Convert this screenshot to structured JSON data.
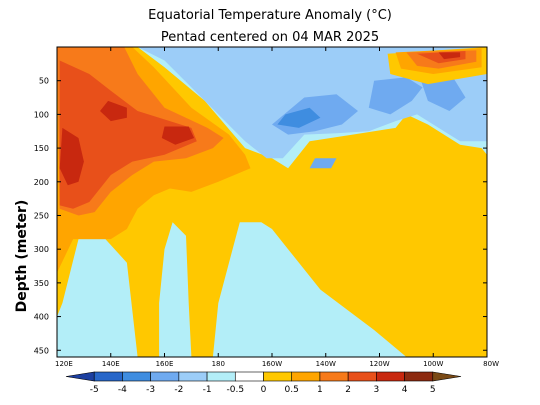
{
  "chart_data": {
    "type": "heatmap",
    "title": "Equatorial Temperature Anomaly (°C)",
    "subtitle": "Pentad centered on 04 MAR 2025",
    "ylabel": "Depth (meter)",
    "xlabel": "",
    "x_ticks": [
      "120E",
      "140E",
      "160E",
      "180",
      "160W",
      "140W",
      "120W",
      "100W",
      "80W"
    ],
    "x_tick_values": [
      120,
      140,
      160,
      180,
      200,
      220,
      240,
      260,
      280
    ],
    "xlim": [
      120,
      280
    ],
    "y_ticks": [
      "50",
      "100",
      "150",
      "200",
      "250",
      "300",
      "350",
      "400",
      "450"
    ],
    "y_tick_values": [
      50,
      100,
      150,
      200,
      250,
      300,
      350,
      400,
      450
    ],
    "ylim": [
      0,
      460
    ],
    "y_inverted": true,
    "colorbar": {
      "labels": [
        "-5",
        "-4",
        "-3",
        "-2",
        "-1",
        "-0.5",
        "0",
        "0.5",
        "1",
        "2",
        "3",
        "4",
        "5"
      ],
      "levels": [
        -5,
        -4,
        -3,
        -2,
        -1,
        -0.5,
        0,
        0.5,
        1,
        2,
        3,
        4,
        5
      ],
      "colors": [
        "#1c3fa0",
        "#2766c9",
        "#3f8de0",
        "#6faaf0",
        "#9ccdf8",
        "#b3eef8",
        "#ffffff",
        "#ffc800",
        "#ffa500",
        "#f77a1a",
        "#e8501a",
        "#c8280f",
        "#8c2a10",
        "#7a4a16"
      ]
    },
    "regions": [
      {
        "level": -0.5,
        "color": "#b3eef8",
        "polygon": [
          [
            120,
            0
          ],
          [
            280,
            0
          ],
          [
            280,
            460
          ],
          [
            120,
            460
          ]
        ]
      },
      {
        "level": 0.5,
        "color": "#ffc800",
        "polygon": [
          [
            122,
            0
          ],
          [
            150,
            0
          ],
          [
            160,
            30
          ],
          [
            175,
            80
          ],
          [
            190,
            150
          ],
          [
            200,
            165
          ],
          [
            206,
            180
          ],
          [
            214,
            140
          ],
          [
            230,
            130
          ],
          [
            246,
            120
          ],
          [
            250,
            100
          ],
          [
            258,
            115
          ],
          [
            264,
            130
          ],
          [
            270,
            145
          ],
          [
            278,
            150
          ],
          [
            280,
            160
          ],
          [
            280,
            460
          ],
          [
            250,
            460
          ],
          [
            238,
            420
          ],
          [
            218,
            360
          ],
          [
            206,
            300
          ],
          [
            200,
            270
          ],
          [
            196,
            260
          ],
          [
            188,
            260
          ],
          [
            184,
            320
          ],
          [
            180,
            380
          ],
          [
            178,
            460
          ],
          [
            170,
            460
          ],
          [
            169,
            380
          ],
          [
            168,
            280
          ],
          [
            163,
            260
          ],
          [
            160,
            300
          ],
          [
            158,
            380
          ],
          [
            158,
            460
          ],
          [
            150,
            460
          ],
          [
            146,
            320
          ],
          [
            138,
            285
          ],
          [
            128,
            285
          ],
          [
            122,
            380
          ],
          [
            120,
            400
          ],
          [
            120,
            0
          ]
        ]
      },
      {
        "level": 1,
        "color": "#ffa500",
        "polygon": [
          [
            120,
            0
          ],
          [
            148,
            0
          ],
          [
            156,
            30
          ],
          [
            170,
            90
          ],
          [
            184,
            130
          ],
          [
            190,
            160
          ],
          [
            192,
            180
          ],
          [
            180,
            200
          ],
          [
            170,
            215
          ],
          [
            162,
            210
          ],
          [
            156,
            220
          ],
          [
            150,
            240
          ],
          [
            146,
            270
          ],
          [
            140,
            285
          ],
          [
            126,
            285
          ],
          [
            120,
            335
          ]
        ]
      },
      {
        "level": 2,
        "color": "#f77a1a",
        "polygon": [
          [
            120,
            0
          ],
          [
            145,
            0
          ],
          [
            150,
            40
          ],
          [
            160,
            90
          ],
          [
            176,
            120
          ],
          [
            182,
            135
          ],
          [
            178,
            150
          ],
          [
            168,
            165
          ],
          [
            156,
            170
          ],
          [
            148,
            190
          ],
          [
            140,
            215
          ],
          [
            134,
            245
          ],
          [
            128,
            250
          ],
          [
            121,
            240
          ]
        ]
      },
      {
        "level": 3,
        "color": "#e8501a",
        "polygon": [
          [
            121,
            20
          ],
          [
            132,
            40
          ],
          [
            140,
            65
          ],
          [
            150,
            95
          ],
          [
            162,
            110
          ],
          [
            170,
            120
          ],
          [
            172,
            140
          ],
          [
            160,
            160
          ],
          [
            148,
            170
          ],
          [
            140,
            190
          ],
          [
            132,
            230
          ],
          [
            126,
            240
          ],
          [
            121,
            235
          ]
        ]
      },
      {
        "level": 4,
        "color": "#c8280f",
        "polygon": [
          [
            122,
            120
          ],
          [
            128,
            135
          ],
          [
            130,
            170
          ],
          [
            128,
            200
          ],
          [
            124,
            205
          ],
          [
            121,
            180
          ]
        ]
      },
      {
        "level": 4,
        "color": "#c8280f",
        "polygon": [
          [
            139,
            80
          ],
          [
            146,
            90
          ],
          [
            146,
            105
          ],
          [
            140,
            110
          ],
          [
            136,
            95
          ]
        ]
      },
      {
        "level": 4,
        "color": "#c8280f",
        "polygon": [
          [
            160,
            118
          ],
          [
            169,
            118
          ],
          [
            171,
            135
          ],
          [
            164,
            145
          ],
          [
            159,
            135
          ]
        ]
      },
      {
        "level": -1,
        "color": "#9ccdf8",
        "polygon": [
          [
            150,
            0
          ],
          [
            280,
            0
          ],
          [
            280,
            140
          ],
          [
            270,
            140
          ],
          [
            262,
            120
          ],
          [
            254,
            100
          ],
          [
            246,
            110
          ],
          [
            236,
            125
          ],
          [
            224,
            128
          ],
          [
            212,
            130
          ],
          [
            204,
            165
          ],
          [
            198,
            165
          ],
          [
            190,
            140
          ],
          [
            180,
            100
          ],
          [
            170,
            60
          ],
          [
            160,
            20
          ]
        ]
      },
      {
        "level": -2,
        "color": "#6faaf0",
        "polygon": [
          [
            212,
            75
          ],
          [
            224,
            70
          ],
          [
            232,
            95
          ],
          [
            226,
            115
          ],
          [
            216,
            125
          ],
          [
            206,
            130
          ],
          [
            200,
            115
          ]
        ]
      },
      {
        "level": -2,
        "color": "#6faaf0",
        "polygon": [
          [
            238,
            50
          ],
          [
            250,
            45
          ],
          [
            256,
            60
          ],
          [
            252,
            80
          ],
          [
            244,
            100
          ],
          [
            236,
            90
          ]
        ]
      },
      {
        "level": -2,
        "color": "#6faaf0",
        "polygon": [
          [
            255,
            45
          ],
          [
            265,
            30
          ],
          [
            272,
            75
          ],
          [
            266,
            95
          ],
          [
            258,
            80
          ]
        ]
      },
      {
        "level": -2,
        "color": "#6faaf0",
        "polygon": [
          [
            216,
            165
          ],
          [
            224,
            165
          ],
          [
            222,
            180
          ],
          [
            214,
            180
          ]
        ]
      },
      {
        "level": -3,
        "color": "#3f8de0",
        "polygon": [
          [
            205,
            100
          ],
          [
            214,
            90
          ],
          [
            218,
            105
          ],
          [
            210,
            120
          ],
          [
            202,
            115
          ]
        ]
      },
      {
        "level": 0.5,
        "color": "#ffc800",
        "polygon": [
          [
            243,
            10
          ],
          [
            280,
            0
          ],
          [
            280,
            40
          ],
          [
            258,
            55
          ],
          [
            244,
            40
          ]
        ]
      },
      {
        "level": 1,
        "color": "#ffa500",
        "polygon": [
          [
            246,
            8
          ],
          [
            278,
            2
          ],
          [
            278,
            30
          ],
          [
            260,
            40
          ],
          [
            248,
            32
          ]
        ]
      },
      {
        "level": 2,
        "color": "#f77a1a",
        "polygon": [
          [
            250,
            8
          ],
          [
            276,
            5
          ],
          [
            276,
            22
          ],
          [
            262,
            32
          ],
          [
            254,
            28
          ]
        ]
      },
      {
        "level": 3,
        "color": "#e8501a",
        "polygon": [
          [
            254,
            10
          ],
          [
            272,
            6
          ],
          [
            272,
            18
          ],
          [
            262,
            24
          ]
        ]
      },
      {
        "level": 4,
        "color": "#c8280f",
        "polygon": [
          [
            262,
            8
          ],
          [
            270,
            8
          ],
          [
            270,
            15
          ],
          [
            264,
            18
          ]
        ]
      }
    ]
  }
}
